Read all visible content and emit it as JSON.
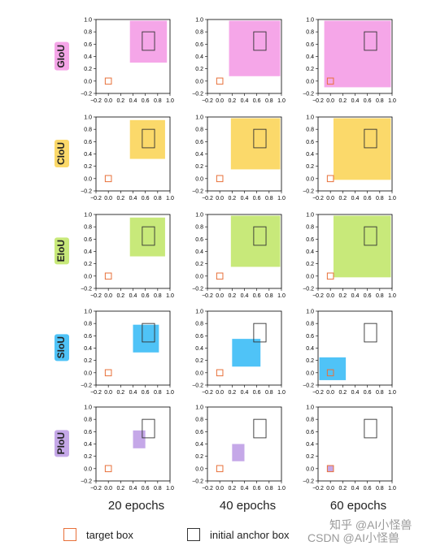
{
  "chart_data": {
    "type": "scatter",
    "xlim": [
      -0.2,
      1.0
    ],
    "ylim": [
      -0.2,
      1.0
    ],
    "xticks": [
      "−0.2",
      "0.0",
      "0.2",
      "0.4",
      "0.6",
      "0.8",
      "1.0"
    ],
    "yticks": [
      "−0.2",
      "0.0",
      "0.2",
      "0.4",
      "0.6",
      "0.8",
      "1.0"
    ],
    "grid": false,
    "columns": [
      "20 epochs",
      "40 epochs",
      "60 epochs"
    ],
    "target_box": [
      -0.05,
      -0.05,
      0.05,
      0.05
    ],
    "anchor_box": [
      0.55,
      0.5,
      0.75,
      0.8
    ],
    "rows": [
      {
        "label": "GIoU",
        "color": "#f5a6e8",
        "boxes": [
          [
            0.35,
            0.3,
            0.95,
            0.98
          ],
          [
            0.15,
            0.08,
            0.98,
            0.98
          ],
          [
            -0.1,
            -0.1,
            0.98,
            0.98
          ]
        ]
      },
      {
        "label": "CIoU",
        "color": "#fbd96a",
        "boxes": [
          [
            0.35,
            0.32,
            0.92,
            0.95
          ],
          [
            0.18,
            0.15,
            0.98,
            0.98
          ],
          [
            0.05,
            -0.02,
            0.98,
            0.98
          ]
        ]
      },
      {
        "label": "EIoU",
        "color": "#c8e97a",
        "boxes": [
          [
            0.35,
            0.32,
            0.92,
            0.95
          ],
          [
            0.18,
            0.15,
            0.98,
            0.98
          ],
          [
            0.05,
            -0.02,
            0.98,
            0.98
          ]
        ]
      },
      {
        "label": "SIoU",
        "color": "#4fc3f7",
        "boxes": [
          [
            0.4,
            0.33,
            0.82,
            0.78
          ],
          [
            0.2,
            0.1,
            0.66,
            0.55
          ],
          [
            -0.18,
            -0.12,
            0.25,
            0.25
          ]
        ]
      },
      {
        "label": "PIoU",
        "color": "#c5a8e8",
        "boxes": [
          [
            0.4,
            0.33,
            0.6,
            0.62
          ],
          [
            0.2,
            0.12,
            0.4,
            0.4
          ],
          [
            -0.05,
            -0.05,
            0.05,
            0.05
          ]
        ]
      }
    ],
    "legend": {
      "target": "target box",
      "anchor": "initial anchor box"
    },
    "target_color": "#e8703a",
    "anchor_color": "#333333"
  },
  "watermark": "知乎 @AI小怪兽",
  "watermark2": "CSDN @AI小怪兽"
}
